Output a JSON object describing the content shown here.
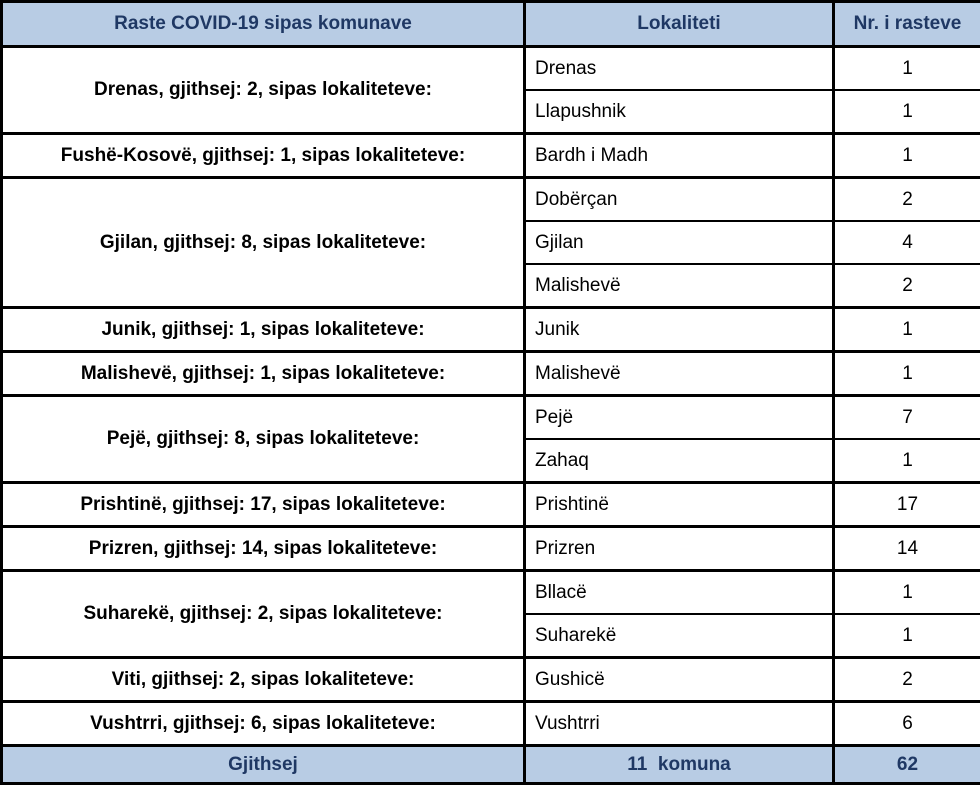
{
  "table": {
    "headers": [
      "Raste COVID-19 sipas komunave",
      "Lokaliteti",
      "Nr. i rasteve"
    ],
    "groups": [
      {
        "label": "Drenas, gjithsej: 2, sipas lokaliteteve:",
        "localities": [
          {
            "name": "Drenas",
            "cases": "1"
          },
          {
            "name": "Llapushnik",
            "cases": "1"
          }
        ]
      },
      {
        "label": "Fushë-Kosovë, gjithsej: 1, sipas lokaliteteve:",
        "localities": [
          {
            "name": "Bardh i Madh",
            "cases": "1"
          }
        ]
      },
      {
        "label": "Gjilan, gjithsej: 8, sipas lokaliteteve:",
        "localities": [
          {
            "name": "Dobërçan",
            "cases": "2"
          },
          {
            "name": "Gjilan",
            "cases": "4"
          },
          {
            "name": "Malishevë",
            "cases": "2"
          }
        ]
      },
      {
        "label": "Junik, gjithsej: 1, sipas lokaliteteve:",
        "localities": [
          {
            "name": "Junik",
            "cases": "1"
          }
        ]
      },
      {
        "label": "Malishevë, gjithsej: 1, sipas lokaliteteve:",
        "localities": [
          {
            "name": "Malishevë",
            "cases": "1"
          }
        ]
      },
      {
        "label": "Pejë, gjithsej: 8, sipas lokaliteteve:",
        "localities": [
          {
            "name": "Pejë",
            "cases": "7"
          },
          {
            "name": "Zahaq",
            "cases": "1"
          }
        ]
      },
      {
        "label": "Prishtinë, gjithsej: 17, sipas lokaliteteve:",
        "localities": [
          {
            "name": "Prishtinë",
            "cases": "17"
          }
        ]
      },
      {
        "label": "Prizren, gjithsej: 14, sipas lokaliteteve:",
        "localities": [
          {
            "name": "Prizren",
            "cases": "14"
          }
        ]
      },
      {
        "label": "Suharekë, gjithsej: 2, sipas lokaliteteve:",
        "localities": [
          {
            "name": "Bllacë",
            "cases": "1"
          },
          {
            "name": "Suharekë",
            "cases": "1"
          }
        ]
      },
      {
        "label": "Viti, gjithsej: 2, sipas lokaliteteve:",
        "localities": [
          {
            "name": "Gushicë",
            "cases": "2"
          }
        ]
      },
      {
        "label": "Vushtrri, gjithsej: 6, sipas lokaliteteve:",
        "localities": [
          {
            "name": "Vushtrri",
            "cases": "6"
          }
        ]
      }
    ],
    "footer": {
      "label": "Gjithsej",
      "localities_summary": "11  komuna",
      "total": "62"
    }
  },
  "colors": {
    "header_bg": "#b8cce4",
    "header_text": "#1f3864",
    "border": "#000000",
    "body_text": "#000000"
  },
  "chart_data": {
    "type": "table",
    "title": "Raste COVID-19 sipas komunave",
    "columns": [
      "Raste COVID-19 sipas komunave",
      "Lokaliteti",
      "Nr. i rasteve"
    ],
    "rows": [
      [
        "Drenas, gjithsej: 2, sipas lokaliteteve:",
        "Drenas",
        1
      ],
      [
        "Drenas, gjithsej: 2, sipas lokaliteteve:",
        "Llapushnik",
        1
      ],
      [
        "Fushë-Kosovë, gjithsej: 1, sipas lokaliteteve:",
        "Bardh i Madh",
        1
      ],
      [
        "Gjilan, gjithsej: 8, sipas lokaliteteve:",
        "Dobërçan",
        2
      ],
      [
        "Gjilan, gjithsej: 8, sipas lokaliteteve:",
        "Gjilan",
        4
      ],
      [
        "Gjilan, gjithsej: 8, sipas lokaliteteve:",
        "Malishevë",
        2
      ],
      [
        "Junik, gjithsej: 1, sipas lokaliteteve:",
        "Junik",
        1
      ],
      [
        "Malishevë, gjithsej: 1, sipas lokaliteteve:",
        "Malishevë",
        1
      ],
      [
        "Pejë, gjithsej: 8, sipas lokaliteteve:",
        "Pejë",
        7
      ],
      [
        "Pejë, gjithsej: 8, sipas lokaliteteve:",
        "Zahaq",
        1
      ],
      [
        "Prishtinë, gjithsej: 17, sipas lokaliteteve:",
        "Prishtinë",
        17
      ],
      [
        "Prizren, gjithsej: 14, sipas lokaliteteve:",
        "Prizren",
        14
      ],
      [
        "Suharekë, gjithsej: 2, sipas lokaliteteve:",
        "Bllacë",
        1
      ],
      [
        "Suharekë, gjithsej: 2, sipas lokaliteteve:",
        "Suharekë",
        1
      ],
      [
        "Viti, gjithsej: 2, sipas lokaliteteve:",
        "Gushicë",
        2
      ],
      [
        "Vushtrri, gjithsej: 6, sipas lokaliteteve:",
        "Vushtrri",
        6
      ]
    ],
    "footer": [
      "Gjithsej",
      "11 komuna",
      62
    ]
  }
}
